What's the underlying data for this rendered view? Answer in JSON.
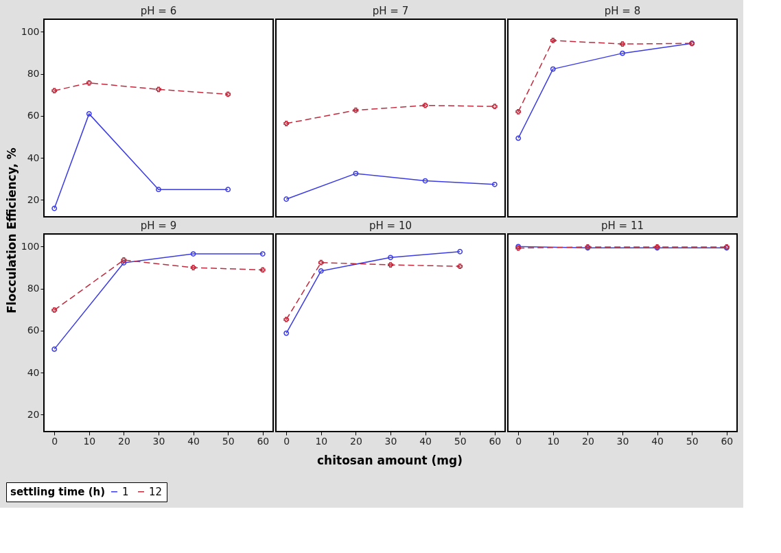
{
  "chart_data": [
    {
      "type": "line",
      "title": "pH = 6",
      "ylabel": "Flocculation Efficiency, %",
      "xlabel": "chitosan amount (mg)",
      "legend_title": "settling time (h)",
      "legend": "bottom",
      "xlim": [
        -3,
        63
      ],
      "xticks": [
        0,
        10,
        20,
        30,
        40,
        50,
        60
      ],
      "ylim": [
        12,
        106
      ],
      "yticks": [
        20,
        40,
        60,
        80,
        100
      ],
      "tick_labels": "y",
      "series": [
        {
          "name": "1",
          "color": "#3a3ae6",
          "marker": "circle",
          "line_style": "solid",
          "x": [
            0,
            10,
            30,
            50
          ],
          "values": [
            16,
            61,
            25,
            25
          ]
        },
        {
          "name": "12",
          "color": "#c0283c",
          "marker": "cross",
          "line_style": "dashed",
          "x": [
            0,
            10,
            30,
            50
          ],
          "values": [
            72,
            75.7,
            72.6,
            70.3
          ]
        }
      ]
    },
    {
      "type": "line",
      "title": "pH = 7",
      "xlim": [
        -3,
        63
      ],
      "xticks": [
        0,
        10,
        20,
        30,
        40,
        50,
        60
      ],
      "ylim": [
        12,
        106
      ],
      "yticks": [
        20,
        40,
        60,
        80,
        100
      ],
      "tick_labels": false,
      "series": [
        {
          "name": "1",
          "color": "#3a3ae6",
          "marker": "circle",
          "line_style": "solid",
          "x": [
            0,
            20,
            40,
            60
          ],
          "values": [
            20.4,
            32.6,
            29.1,
            27.4
          ]
        },
        {
          "name": "12",
          "color": "#c0283c",
          "marker": "cross",
          "line_style": "dashed",
          "x": [
            0,
            20,
            40,
            60
          ],
          "values": [
            56.4,
            62.7,
            65,
            64.5
          ]
        }
      ]
    },
    {
      "type": "line",
      "title": "pH = 8",
      "xlim": [
        -3,
        63
      ],
      "xticks": [
        0,
        10,
        20,
        30,
        40,
        50,
        60
      ],
      "ylim": [
        12,
        106
      ],
      "yticks": [
        20,
        40,
        60,
        80,
        100
      ],
      "tick_labels": false,
      "series": [
        {
          "name": "1",
          "color": "#3a3ae6",
          "marker": "circle",
          "line_style": "solid",
          "x": [
            0,
            10,
            30,
            50
          ],
          "values": [
            49.4,
            82.3,
            89.8,
            94.5
          ]
        },
        {
          "name": "12",
          "color": "#c0283c",
          "marker": "cross",
          "line_style": "dashed",
          "x": [
            0,
            10,
            30,
            50
          ],
          "values": [
            62,
            95.9,
            94.2,
            94.5
          ]
        }
      ]
    },
    {
      "type": "line",
      "title": "pH = 9",
      "xlim": [
        -3,
        63
      ],
      "xticks": [
        0,
        10,
        20,
        30,
        40,
        50,
        60
      ],
      "ylim": [
        12,
        106
      ],
      "yticks": [
        20,
        40,
        60,
        80,
        100
      ],
      "series": [
        {
          "name": "1",
          "color": "#3a3ae6",
          "marker": "circle",
          "line_style": "solid",
          "x": [
            0,
            20,
            40,
            60
          ],
          "values": [
            51.2,
            92.3,
            96.5,
            96.5
          ]
        },
        {
          "name": "12",
          "color": "#c0283c",
          "marker": "cross",
          "line_style": "dashed",
          "x": [
            0,
            20,
            40,
            60
          ],
          "values": [
            69.8,
            93.6,
            90,
            88.9
          ]
        }
      ]
    },
    {
      "type": "line",
      "title": "pH = 10",
      "xlim": [
        -3,
        63
      ],
      "xticks": [
        0,
        10,
        20,
        30,
        40,
        50,
        60
      ],
      "ylim": [
        12,
        106
      ],
      "yticks": [
        20,
        40,
        60,
        80,
        100
      ],
      "tick_labels": "x",
      "series": [
        {
          "name": "1",
          "color": "#3a3ae6",
          "marker": "circle",
          "line_style": "solid",
          "x": [
            0,
            10,
            30,
            50
          ],
          "values": [
            58.8,
            88.4,
            94.8,
            97.6
          ]
        },
        {
          "name": "12",
          "color": "#c0283c",
          "marker": "cross",
          "line_style": "dashed",
          "x": [
            0,
            10,
            30,
            50
          ],
          "values": [
            65.3,
            92.4,
            91.3,
            90.6
          ]
        }
      ]
    },
    {
      "type": "line",
      "title": "pH = 11",
      "xlim": [
        -3,
        63
      ],
      "xticks": [
        0,
        10,
        20,
        30,
        40,
        50,
        60
      ],
      "ylim": [
        12,
        106
      ],
      "yticks": [
        20,
        40,
        60,
        80,
        100
      ],
      "tick_labels": "x",
      "series": [
        {
          "name": "1",
          "color": "#3a3ae6",
          "marker": "circle",
          "line_style": "solid",
          "x": [
            0,
            20,
            40,
            60
          ],
          "values": [
            100,
            99.4,
            99.4,
            99.4
          ]
        },
        {
          "name": "12",
          "color": "#c0283c",
          "marker": "cross",
          "line_style": "dashed",
          "x": [
            0,
            20,
            40,
            60
          ],
          "values": [
            99.3,
            99.8,
            99.8,
            99.8
          ]
        }
      ]
    }
  ]
}
